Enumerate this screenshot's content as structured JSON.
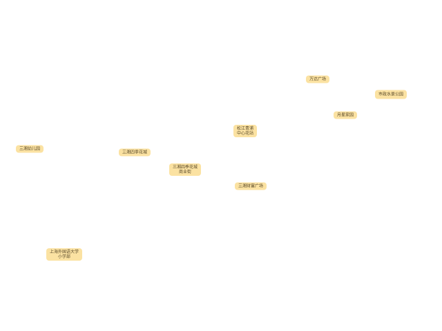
{
  "places": [
    {
      "name": [
        "万达广场"
      ]
    },
    {
      "name": [
        "市政水景公园"
      ]
    },
    {
      "name": [
        "月星家园"
      ]
    },
    {
      "name": [
        "松江青浦",
        "中心花站"
      ]
    },
    {
      "name": [
        "三湘幼儿园"
      ]
    },
    {
      "name": [
        "三湘四季花城"
      ]
    },
    {
      "name": [
        "三湘四季花城",
        "商业街"
      ]
    },
    {
      "name": [
        "三湘财富广场"
      ]
    },
    {
      "name": [
        "上海外国语大学",
        "小学部"
      ]
    }
  ]
}
